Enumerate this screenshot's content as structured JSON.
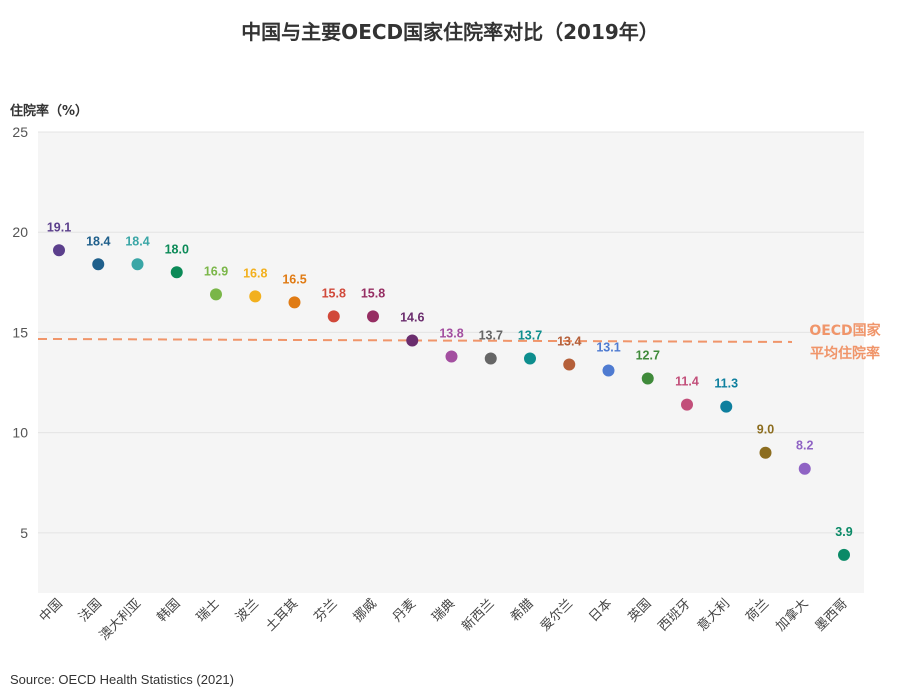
{
  "chart_data": {
    "type": "scatter",
    "title": "中国与主要OECD国家住院率对比（2019年）",
    "ylabel": "住院率（%）",
    "xlabel": "",
    "ylim": [
      2,
      25
    ],
    "yticks": [
      5,
      10,
      15,
      20,
      25
    ],
    "grid": true,
    "categories": [
      "中国",
      "法国",
      "澳大利亚",
      "韩国",
      "瑞士",
      "波兰",
      "土耳其",
      "芬兰",
      "挪威",
      "丹麦",
      "瑞典",
      "新西兰",
      "希腊",
      "爱尔兰",
      "日本",
      "英国",
      "西班牙",
      "意大利",
      "荷兰",
      "加拿大",
      "墨西哥"
    ],
    "values": [
      19.1,
      18.4,
      18.4,
      18.0,
      16.9,
      16.8,
      16.5,
      15.8,
      15.8,
      14.6,
      13.8,
      13.7,
      13.7,
      13.4,
      13.1,
      12.7,
      11.4,
      11.3,
      9.0,
      8.2,
      3.9
    ],
    "value_labels": [
      "19.1",
      "18.4",
      "18.4",
      "18.0",
      "16.9",
      "16.8",
      "16.5",
      "15.8",
      "15.8",
      "14.6",
      "13.8",
      "13.7",
      "13.7",
      "13.4",
      "13.1",
      "12.7",
      "11.4",
      "11.3",
      "9.0",
      "8.2",
      "3.9"
    ],
    "colors": [
      "#5b3f8c",
      "#1f5f8b",
      "#3aa6a6",
      "#0b8a57",
      "#7ab648",
      "#f2b01e",
      "#e07b14",
      "#d1493a",
      "#962e63",
      "#6b2d6e",
      "#a34fa0",
      "#666666",
      "#0e8e8e",
      "#b5603a",
      "#4f7bd1",
      "#3f8a3a",
      "#c24f7a",
      "#0e7f9e",
      "#8c6d1f",
      "#8f63c4",
      "#0b8a67"
    ],
    "reference_line": {
      "value": 14.6,
      "label_lines": [
        "OECD国家",
        "平均住院率"
      ],
      "color": "#f0956a"
    }
  },
  "source": "Source: OECD Health Statistics (2021)"
}
